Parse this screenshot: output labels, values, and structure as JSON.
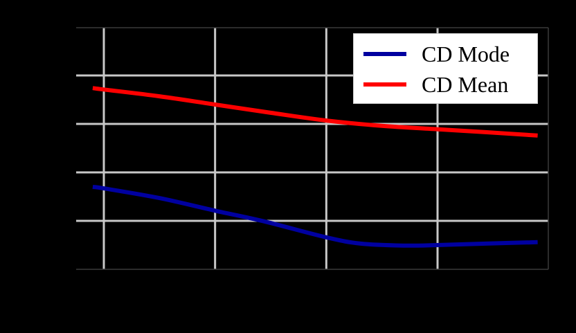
{
  "chart_data": {
    "type": "line",
    "title": "",
    "xlabel": "",
    "ylabel": "",
    "x_ticks_visible": false,
    "y_ticks_visible": false,
    "note": "Tick labels rendered black-on-black; x in gridline units (gridlines at x=1,2,3,4), y in gridline units (gridlines at y=1,2,3,4)",
    "xlim": [
      0.75,
      5.0
    ],
    "ylim": [
      0,
      4.99
    ],
    "grid": true,
    "legend_position": "upper right",
    "series": [
      {
        "name": "CD Mode",
        "color": "#0000a0",
        "x": [
          0.9,
          1.0,
          1.5,
          2.0,
          2.44,
          3.0,
          3.31,
          3.69,
          4.0,
          4.43,
          4.9
        ],
        "y": [
          1.7,
          1.67,
          1.47,
          1.21,
          0.99,
          0.66,
          0.53,
          0.49,
          0.5,
          0.53,
          0.56
        ]
      },
      {
        "name": "CD Mean",
        "color": "#ff0000",
        "x": [
          0.9,
          1.0,
          1.5,
          2.0,
          2.5,
          3.0,
          3.5,
          4.0,
          4.43,
          4.9
        ],
        "y": [
          3.74,
          3.71,
          3.57,
          3.4,
          3.23,
          3.07,
          2.96,
          2.89,
          2.83,
          2.76
        ]
      }
    ]
  },
  "legend": {
    "items": [
      {
        "label": "CD Mode",
        "color": "#0000a0"
      },
      {
        "label": "CD Mean",
        "color": "#ff0000"
      }
    ]
  },
  "style": {
    "background": "#000000",
    "grid_color": "#c8c8c8",
    "spine_color": "#3a3a3a"
  }
}
